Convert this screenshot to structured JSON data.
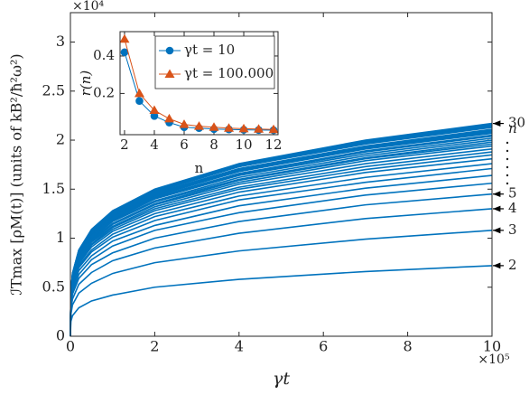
{
  "chart_data": [
    {
      "type": "line",
      "x_label": "γt",
      "y_label": "ℐTmax [ρM(t)] (units of kB²/ħ²ω²)",
      "x_multiplier": "×10⁵",
      "y_multiplier": "×10⁴",
      "annotations": [
        "n"
      ],
      "color": "#0072BD",
      "x": [
        0,
        0.01,
        0.05,
        0.2,
        0.5,
        1,
        2,
        4,
        7,
        10
      ],
      "xlim": [
        0,
        10
      ],
      "xticks": [
        0,
        2,
        4,
        6,
        8,
        10
      ],
      "ylim": [
        0,
        3.3
      ],
      "yticks": [
        0,
        0.5,
        1,
        1.5,
        2,
        2.5,
        3
      ],
      "series": [
        {
          "name": "2",
          "values": [
            0,
            0.15,
            0.21,
            0.29,
            0.36,
            0.42,
            0.5,
            0.58,
            0.66,
            0.72
          ]
        },
        {
          "name": "3",
          "values": [
            0,
            0.22,
            0.32,
            0.44,
            0.54,
            0.64,
            0.75,
            0.87,
            0.99,
            1.08
          ]
        },
        {
          "name": "4",
          "values": [
            0,
            0.27,
            0.38,
            0.53,
            0.65,
            0.77,
            0.9,
            1.05,
            1.2,
            1.3
          ]
        },
        {
          "name": "5",
          "values": [
            0,
            0.3,
            0.43,
            0.59,
            0.73,
            0.85,
            1.0,
            1.17,
            1.34,
            1.45
          ]
        },
        {
          "values": [
            0,
            0.32,
            0.46,
            0.63,
            0.78,
            0.92,
            1.08,
            1.26,
            1.44,
            1.56
          ]
        },
        {
          "values": [
            0,
            0.33,
            0.49,
            0.67,
            0.82,
            0.97,
            1.13,
            1.33,
            1.51,
            1.64
          ]
        },
        {
          "values": [
            0,
            0.35,
            0.51,
            0.7,
            0.86,
            1.01,
            1.18,
            1.39,
            1.57,
            1.71
          ]
        },
        {
          "values": [
            0,
            0.36,
            0.52,
            0.72,
            0.88,
            1.04,
            1.22,
            1.43,
            1.62,
            1.76
          ]
        },
        {
          "values": [
            0,
            0.37,
            0.54,
            0.74,
            0.91,
            1.07,
            1.25,
            1.47,
            1.67,
            1.81
          ]
        },
        {
          "values": [
            0,
            0.38,
            0.55,
            0.75,
            0.93,
            1.09,
            1.28,
            1.5,
            1.7,
            1.85
          ]
        },
        {
          "values": [
            0,
            0.38,
            0.56,
            0.77,
            0.94,
            1.11,
            1.3,
            1.52,
            1.73,
            1.88
          ]
        },
        {
          "values": [
            0,
            0.39,
            0.57,
            0.78,
            0.96,
            1.12,
            1.32,
            1.55,
            1.76,
            1.91
          ]
        },
        {
          "values": [
            0,
            0.4,
            0.57,
            0.79,
            0.97,
            1.14,
            1.34,
            1.57,
            1.79,
            1.94
          ]
        },
        {
          "values": [
            0,
            0.4,
            0.58,
            0.8,
            0.98,
            1.15,
            1.35,
            1.59,
            1.81,
            1.96
          ]
        },
        {
          "values": [
            0,
            0.4,
            0.59,
            0.81,
            0.99,
            1.17,
            1.37,
            1.6,
            1.82,
            1.98
          ]
        },
        {
          "values": [
            0,
            0.41,
            0.59,
            0.81,
            1.0,
            1.18,
            1.38,
            1.62,
            1.84,
            2.0
          ]
        },
        {
          "values": [
            0,
            0.41,
            0.6,
            0.82,
            1.01,
            1.19,
            1.4,
            1.64,
            1.86,
            2.02
          ]
        },
        {
          "values": [
            0,
            0.42,
            0.6,
            0.83,
            1.02,
            1.2,
            1.41,
            1.65,
            1.88,
            2.04
          ]
        },
        {
          "values": [
            0,
            0.42,
            0.61,
            0.83,
            1.03,
            1.21,
            1.42,
            1.66,
            1.89,
            2.05
          ]
        },
        {
          "values": [
            0,
            0.42,
            0.61,
            0.84,
            1.04,
            1.22,
            1.43,
            1.68,
            1.91,
            2.07
          ]
        },
        {
          "values": [
            0,
            0.42,
            0.62,
            0.85,
            1.04,
            1.23,
            1.44,
            1.68,
            1.92,
            2.08
          ]
        },
        {
          "values": [
            0,
            0.43,
            0.62,
            0.85,
            1.05,
            1.23,
            1.44,
            1.69,
            1.92,
            2.09
          ]
        },
        {
          "values": [
            0,
            0.43,
            0.62,
            0.85,
            1.05,
            1.24,
            1.45,
            1.7,
            1.93,
            2.1
          ]
        },
        {
          "values": [
            0,
            0.43,
            0.62,
            0.86,
            1.06,
            1.24,
            1.46,
            1.71,
            1.94,
            2.11
          ]
        },
        {
          "values": [
            0,
            0.43,
            0.63,
            0.87,
            1.07,
            1.25,
            1.47,
            1.73,
            1.96,
            2.13
          ]
        },
        {
          "values": [
            0,
            0.44,
            0.63,
            0.87,
            1.07,
            1.26,
            1.48,
            1.73,
            1.97,
            2.14
          ]
        },
        {
          "values": [
            0,
            0.44,
            0.64,
            0.88,
            1.08,
            1.27,
            1.49,
            1.74,
            1.98,
            2.15
          ]
        },
        {
          "values": [
            0,
            0.44,
            0.64,
            0.88,
            1.08,
            1.27,
            1.49,
            1.75,
            1.99,
            2.16
          ]
        },
        {
          "name": "30",
          "values": [
            0,
            0.44,
            0.64,
            0.88,
            1.09,
            1.28,
            1.5,
            1.76,
            2.0,
            2.17
          ]
        }
      ]
    },
    {
      "type": "line-marker",
      "x_label": "n",
      "y_label": "r(n)",
      "x": [
        2,
        3,
        4,
        5,
        6,
        7,
        8,
        9,
        10,
        11,
        12
      ],
      "xlim": [
        1.7,
        12.3
      ],
      "xticks": [
        2,
        4,
        6,
        8,
        10,
        12
      ],
      "ylim": [
        -0.02,
        0.53
      ],
      "yticks": [
        0.2,
        0.4
      ],
      "series": [
        {
          "name": "γt = 10",
          "color": "#0072BD",
          "marker": "circle",
          "values": [
            0.42,
            0.16,
            0.08,
            0.045,
            0.02,
            0.015,
            0.01,
            0.008,
            0.006,
            0.005,
            0.004
          ]
        },
        {
          "name": "γt = 100.000",
          "color": "#D95319",
          "marker": "triangle",
          "values": [
            0.49,
            0.2,
            0.11,
            0.065,
            0.035,
            0.025,
            0.02,
            0.015,
            0.012,
            0.01,
            0.008
          ]
        }
      ]
    }
  ]
}
